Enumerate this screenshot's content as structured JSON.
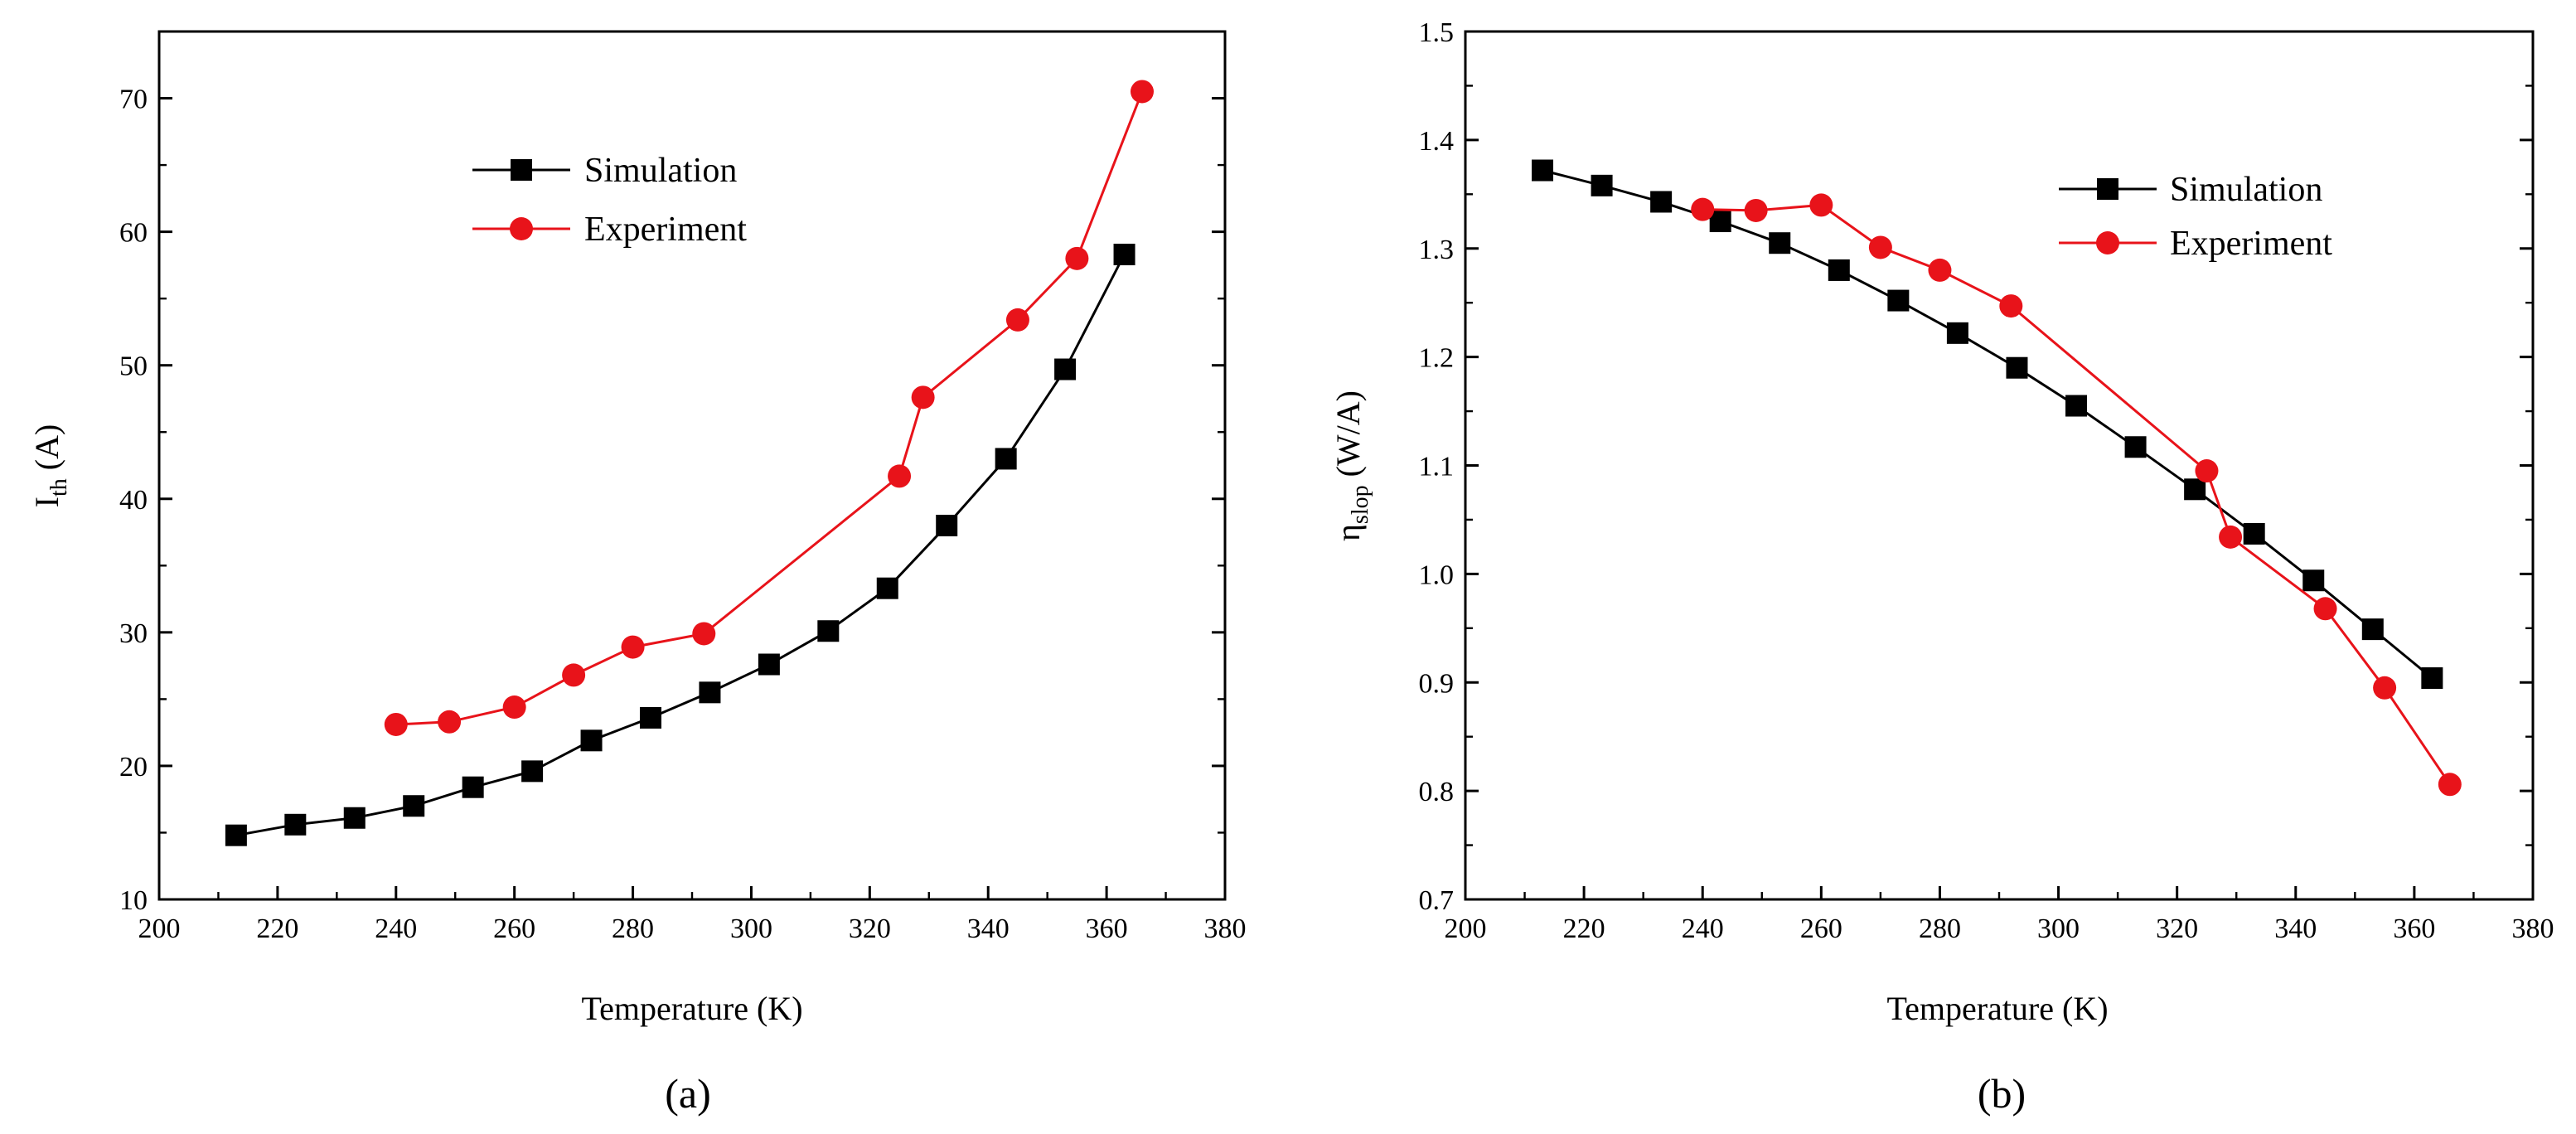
{
  "colors": {
    "simulation": "#000000",
    "experiment": "#e8131a"
  },
  "chart_data": [
    {
      "panel_label": "(a)",
      "type": "line",
      "xlabel": "Temperature (K)",
      "ylabel_main": "I",
      "ylabel_sub": "th",
      "ylabel_unit": " (A)",
      "xlim": [
        200,
        380
      ],
      "ylim": [
        10,
        75
      ],
      "xticks": [
        200,
        220,
        240,
        260,
        280,
        300,
        320,
        340,
        360,
        380
      ],
      "yticks": [
        10,
        20,
        30,
        40,
        50,
        60,
        70
      ],
      "xtick_labels": [
        "200",
        "220",
        "240",
        "260",
        "280",
        "300",
        "320",
        "340",
        "360",
        "380"
      ],
      "ytick_labels": [
        "10",
        "20",
        "30",
        "40",
        "50",
        "60",
        "70"
      ],
      "legend_position": "upper-center",
      "series": [
        {
          "name": "Simulation",
          "marker": "square",
          "x": [
            213,
            223,
            233,
            243,
            253,
            263,
            273,
            283,
            293,
            303,
            313,
            323,
            333,
            343,
            353,
            363
          ],
          "y": [
            14.8,
            15.6,
            16.1,
            17.0,
            18.4,
            19.6,
            21.9,
            23.6,
            25.5,
            27.6,
            30.1,
            33.3,
            38.0,
            43.0,
            49.7,
            58.3
          ]
        },
        {
          "name": "Experiment",
          "marker": "circle",
          "x": [
            240,
            249,
            260,
            270,
            280,
            292,
            325,
            329,
            345,
            355,
            366
          ],
          "y": [
            23.1,
            23.3,
            24.4,
            26.8,
            28.9,
            29.9,
            41.7,
            47.6,
            53.4,
            58.0,
            70.5
          ]
        }
      ]
    },
    {
      "panel_label": "(b)",
      "type": "line",
      "xlabel": "Temperature (K)",
      "ylabel_main": "η",
      "ylabel_sub": "slop",
      "ylabel_unit": " (W/A)",
      "xlim": [
        200,
        380
      ],
      "ylim": [
        0.7,
        1.5
      ],
      "xticks": [
        200,
        220,
        240,
        260,
        280,
        300,
        320,
        340,
        360,
        380
      ],
      "yticks": [
        0.7,
        0.8,
        0.9,
        1.0,
        1.1,
        1.2,
        1.3,
        1.4,
        1.5
      ],
      "xtick_labels": [
        "200",
        "220",
        "240",
        "260",
        "280",
        "300",
        "320",
        "340",
        "360",
        "380"
      ],
      "ytick_labels": [
        "0.7",
        "0.8",
        "0.9",
        "1.0",
        "1.1",
        "1.2",
        "1.3",
        "1.4",
        "1.5"
      ],
      "legend_position": "upper-right",
      "series": [
        {
          "name": "Simulation",
          "marker": "square",
          "x": [
            213,
            223,
            233,
            243,
            253,
            263,
            273,
            283,
            293,
            303,
            313,
            323,
            333,
            343,
            353,
            363
          ],
          "y": [
            1.372,
            1.358,
            1.343,
            1.325,
            1.305,
            1.28,
            1.252,
            1.222,
            1.19,
            1.155,
            1.117,
            1.078,
            1.037,
            0.994,
            0.949,
            0.904
          ]
        },
        {
          "name": "Experiment",
          "marker": "circle",
          "x": [
            240,
            249,
            260,
            270,
            280,
            292,
            325,
            329,
            345,
            355,
            366
          ],
          "y": [
            1.336,
            1.335,
            1.34,
            1.301,
            1.28,
            1.247,
            1.095,
            1.034,
            0.968,
            0.895,
            0.806
          ]
        }
      ]
    }
  ]
}
